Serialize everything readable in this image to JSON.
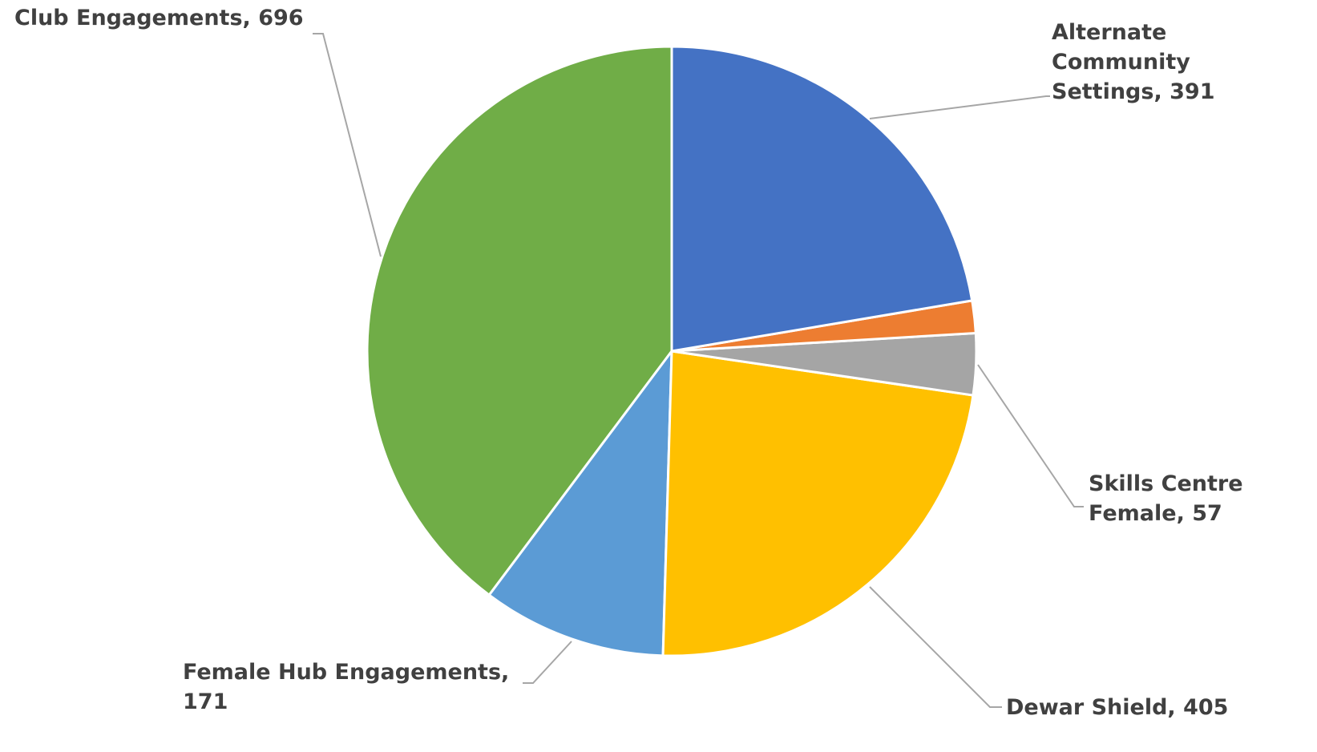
{
  "chart_data": {
    "type": "pie",
    "categories": [
      "Alternate Community Settings",
      null,
      "Skills Centre Female",
      "Dewar Shield",
      "Female Hub Engagements",
      "Club Engagements"
    ],
    "values": [
      391,
      30,
      57,
      405,
      171,
      696
    ],
    "colors": [
      "#4472c4",
      "#ed7d31",
      "#a5a5a5",
      "#ffc000",
      "#5b9bd5",
      "#70ad47"
    ]
  }
}
